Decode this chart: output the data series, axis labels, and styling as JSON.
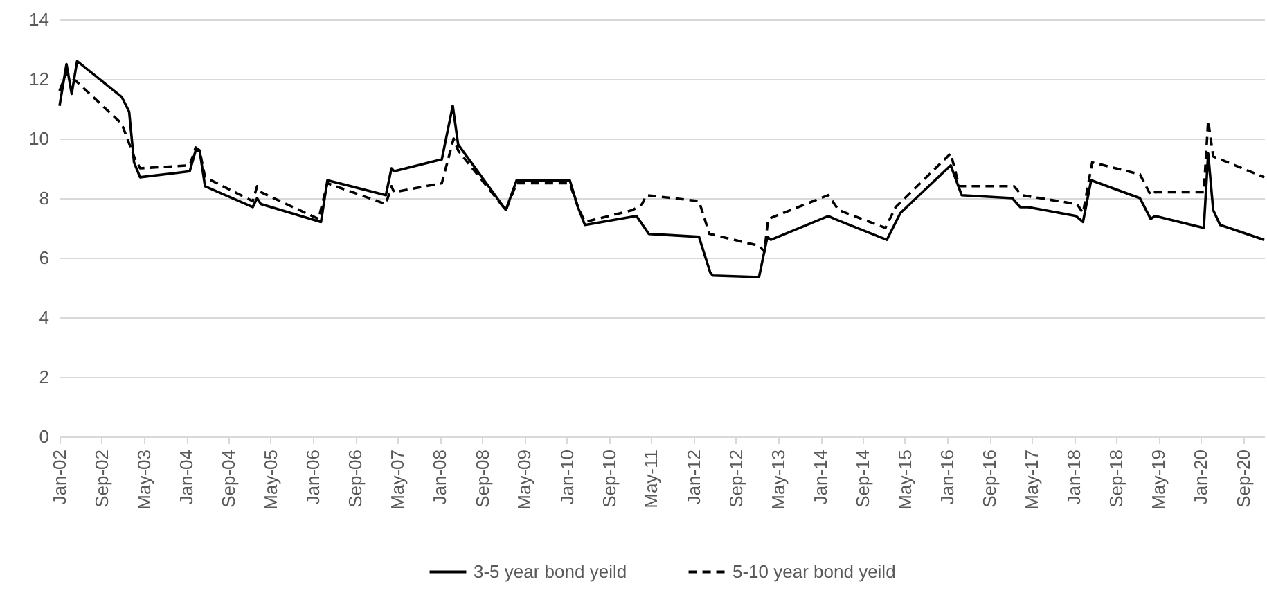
{
  "chart_data": {
    "type": "line",
    "ylim": [
      0,
      14
    ],
    "yticks": [
      0,
      2,
      4,
      6,
      8,
      10,
      12,
      14
    ],
    "xlim": [
      "2002-01-01",
      "2020-12-31"
    ],
    "xticks": [
      {
        "value": "2002-01-01",
        "label": "Jan-02"
      },
      {
        "value": "2002-09-01",
        "label": "Sep-02"
      },
      {
        "value": "2003-05-01",
        "label": "May-03"
      },
      {
        "value": "2004-01-01",
        "label": "Jan-04"
      },
      {
        "value": "2004-09-01",
        "label": "Sep-04"
      },
      {
        "value": "2005-05-01",
        "label": "May-05"
      },
      {
        "value": "2006-01-01",
        "label": "Jan-06"
      },
      {
        "value": "2006-09-01",
        "label": "Sep-06"
      },
      {
        "value": "2007-05-01",
        "label": "May-07"
      },
      {
        "value": "2008-01-01",
        "label": "Jan-08"
      },
      {
        "value": "2008-09-01",
        "label": "Sep-08"
      },
      {
        "value": "2009-05-01",
        "label": "May-09"
      },
      {
        "value": "2010-01-01",
        "label": "Jan-10"
      },
      {
        "value": "2010-09-01",
        "label": "Sep-10"
      },
      {
        "value": "2011-05-01",
        "label": "May-11"
      },
      {
        "value": "2012-01-01",
        "label": "Jan-12"
      },
      {
        "value": "2012-09-01",
        "label": "Sep-12"
      },
      {
        "value": "2013-05-01",
        "label": "May-13"
      },
      {
        "value": "2014-01-01",
        "label": "Jan-14"
      },
      {
        "value": "2014-09-01",
        "label": "Sep-14"
      },
      {
        "value": "2015-05-01",
        "label": "May-15"
      },
      {
        "value": "2016-01-01",
        "label": "Jan-16"
      },
      {
        "value": "2016-09-01",
        "label": "Sep-16"
      },
      {
        "value": "2017-05-01",
        "label": "May-17"
      },
      {
        "value": "2018-01-01",
        "label": "Jan-18"
      },
      {
        "value": "2018-09-01",
        "label": "Sep-18"
      },
      {
        "value": "2019-05-01",
        "label": "May-19"
      },
      {
        "value": "2020-01-01",
        "label": "Jan-20"
      },
      {
        "value": "2020-09-01",
        "label": "Sep-20"
      }
    ],
    "grid": "y",
    "legend": "bottom",
    "marker": "none",
    "series": [
      {
        "name": "3-5 year bond yeild",
        "color": "#000000",
        "line_style": "solid",
        "x": [
          "2002-01-01",
          "2002-02-10",
          "2002-03-12",
          "2002-04-12",
          "2002-12-25",
          "2003-02-06",
          "2003-03-06",
          "2003-04-10",
          "2004-01-21",
          "2004-02-24",
          "2004-03-18",
          "2004-04-18",
          "2005-01-18",
          "2005-02-12",
          "2005-03-06",
          "2006-02-15",
          "2006-03-24",
          "2007-02-24",
          "2007-03-28",
          "2007-04-12",
          "2008-01-12",
          "2008-03-15",
          "2008-04-15",
          "2009-01-15",
          "2009-03-18",
          "2010-01-18",
          "2010-03-06",
          "2010-04-15",
          "2011-02-06",
          "2011-04-18",
          "2012-02-01",
          "2012-04-06",
          "2012-04-21",
          "2013-01-12",
          "2013-03-01",
          "2013-03-21",
          "2014-02-15",
          "2014-03-24",
          "2015-01-18",
          "2015-04-06",
          "2016-01-21",
          "2016-03-24",
          "2017-01-09",
          "2017-02-24",
          "2017-04-12",
          "2018-01-12",
          "2018-02-21",
          "2018-04-09",
          "2019-01-15",
          "2019-03-18",
          "2019-04-12",
          "2020-01-18",
          "2020-02-12",
          "2020-03-12",
          "2020-04-21",
          "2020-12-31"
        ],
        "values": [
          11.1,
          12.5,
          11.5,
          12.6,
          11.4,
          10.9,
          9.2,
          8.7,
          8.9,
          9.6,
          9.6,
          8.4,
          7.7,
          8.0,
          7.8,
          7.2,
          8.6,
          8.1,
          9.0,
          8.9,
          9.3,
          11.1,
          9.8,
          7.6,
          8.6,
          8.6,
          7.7,
          7.1,
          7.4,
          6.8,
          6.7,
          5.5,
          5.4,
          5.35,
          6.7,
          6.6,
          7.4,
          7.3,
          6.6,
          7.5,
          9.1,
          8.1,
          8.0,
          7.7,
          7.7,
          7.4,
          7.2,
          8.6,
          8.0,
          7.3,
          7.4,
          7.0,
          9.5,
          7.6,
          7.1,
          6.6
        ]
      },
      {
        "name": "5-10 year bond yeild",
        "color": "#000000",
        "line_style": "dashed",
        "x": [
          "2002-01-01",
          "2002-02-10",
          "2002-04-12",
          "2002-12-25",
          "2003-03-06",
          "2003-04-10",
          "2004-01-21",
          "2004-02-24",
          "2004-03-18",
          "2004-04-18",
          "2005-01-18",
          "2005-02-12",
          "2005-03-06",
          "2006-02-01",
          "2006-03-24",
          "2007-02-24",
          "2007-03-28",
          "2007-04-12",
          "2008-01-12",
          "2008-03-20",
          "2008-04-15",
          "2009-01-15",
          "2009-03-18",
          "2010-01-18",
          "2010-03-06",
          "2010-04-15",
          "2011-01-15",
          "2011-03-10",
          "2011-04-05",
          "2012-02-01",
          "2012-04-01",
          "2013-01-12",
          "2013-02-12",
          "2013-03-05",
          "2014-02-15",
          "2014-04-15",
          "2015-01-10",
          "2015-03-10",
          "2016-01-21",
          "2016-03-10",
          "2017-01-20",
          "2017-03-05",
          "2018-01-18",
          "2018-02-21",
          "2018-04-15",
          "2019-01-15",
          "2019-03-18",
          "2019-04-12",
          "2020-01-18",
          "2020-02-12",
          "2020-03-12",
          "2020-12-31"
        ],
        "values": [
          11.6,
          12.2,
          11.9,
          10.5,
          9.4,
          9.0,
          9.1,
          9.7,
          9.6,
          8.7,
          7.9,
          8.4,
          8.2,
          7.3,
          8.5,
          7.8,
          8.4,
          8.2,
          8.5,
          10.0,
          9.6,
          7.6,
          8.5,
          8.5,
          7.7,
          7.2,
          7.6,
          7.8,
          8.1,
          7.9,
          6.8,
          6.4,
          6.2,
          7.3,
          8.1,
          7.6,
          7.0,
          7.7,
          9.5,
          8.4,
          8.4,
          8.1,
          7.8,
          7.5,
          9.2,
          8.8,
          8.1,
          8.2,
          8.2,
          10.6,
          9.4,
          8.7
        ]
      }
    ]
  }
}
